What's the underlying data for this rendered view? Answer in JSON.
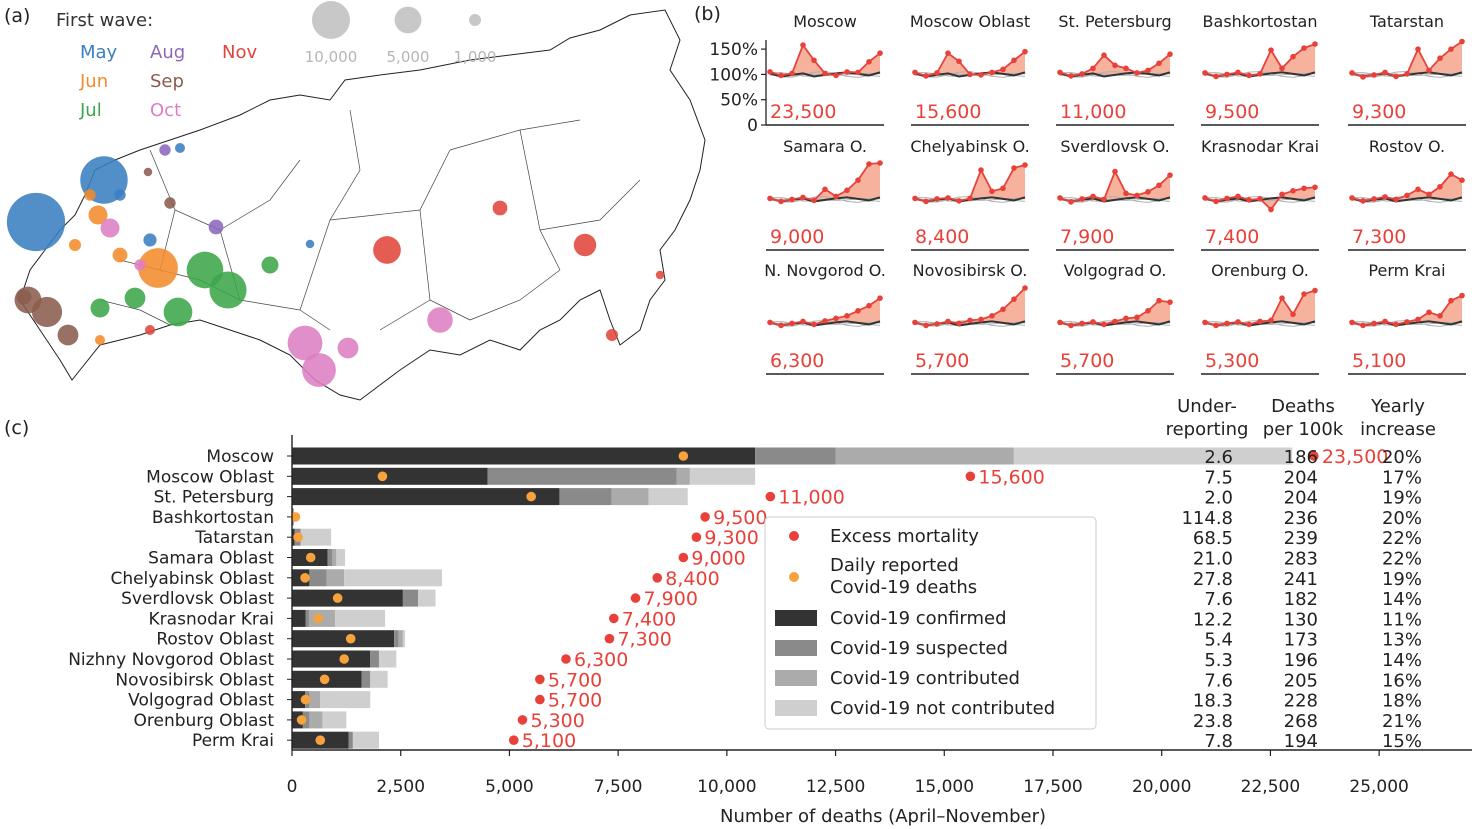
{
  "panel_labels": {
    "a": "(a)",
    "b": "(b)",
    "c": "(c)"
  },
  "colors": {
    "excess": "#e8413a",
    "reported": "#f7a23c",
    "confirmed": "#333333",
    "suspected": "#8a8a8a",
    "contributed": "#ababab",
    "not_contributed": "#cfcfcf",
    "fill": "#f6a58c",
    "May": "#3a7fc1",
    "Jun": "#f28b2b",
    "Jul": "#3ca64a",
    "Aug": "#8c68bd",
    "Sep": "#8a5c4e",
    "Oct": "#dd7fc3",
    "Nov": "#e0453a"
  },
  "map": {
    "legend_title": "First wave:",
    "months": [
      "May",
      "Jun",
      "Jul",
      "Aug",
      "Sep",
      "Oct",
      "Nov"
    ],
    "size_legend": [
      {
        "label": "10,000",
        "value": 10000
      },
      {
        "label": "5,000",
        "value": 5000
      },
      {
        "label": "1,000",
        "value": 1000
      }
    ],
    "circles": [
      {
        "month": "May",
        "value": 23500
      },
      {
        "month": "May",
        "value": 15600
      },
      {
        "month": "May",
        "value": 1200
      },
      {
        "month": "May",
        "value": 900
      },
      {
        "month": "May",
        "value": 700
      },
      {
        "month": "May",
        "value": 500
      },
      {
        "month": "Jun",
        "value": 11000
      },
      {
        "month": "Jun",
        "value": 2500
      },
      {
        "month": "Jun",
        "value": 1500
      },
      {
        "month": "Jun",
        "value": 1000
      },
      {
        "month": "Jun",
        "value": 900
      },
      {
        "month": "Jun",
        "value": 700
      },
      {
        "month": "Jul",
        "value": 9500
      },
      {
        "month": "Jul",
        "value": 9300
      },
      {
        "month": "Jul",
        "value": 5700
      },
      {
        "month": "Jul",
        "value": 3000
      },
      {
        "month": "Jul",
        "value": 2500
      },
      {
        "month": "Jul",
        "value": 2000
      },
      {
        "month": "Aug",
        "value": 1500
      },
      {
        "month": "Aug",
        "value": 900
      },
      {
        "month": "Sep",
        "value": 6300
      },
      {
        "month": "Sep",
        "value": 5000
      },
      {
        "month": "Sep",
        "value": 3000
      },
      {
        "month": "Sep",
        "value": 1500
      },
      {
        "month": "Sep",
        "value": 900
      },
      {
        "month": "Sep",
        "value": 500
      },
      {
        "month": "Oct",
        "value": 8400
      },
      {
        "month": "Oct",
        "value": 7900
      },
      {
        "month": "Oct",
        "value": 4500
      },
      {
        "month": "Oct",
        "value": 3000
      },
      {
        "month": "Oct",
        "value": 2500
      },
      {
        "month": "Oct",
        "value": 900
      },
      {
        "month": "Nov",
        "value": 5300
      },
      {
        "month": "Nov",
        "value": 3500
      },
      {
        "month": "Nov",
        "value": 1500
      },
      {
        "month": "Nov",
        "value": 1000
      },
      {
        "month": "Nov",
        "value": 700
      },
      {
        "month": "Nov",
        "value": 500
      }
    ]
  },
  "chart_data": [
    {
      "type": "line",
      "panel": "b",
      "ytick_labels": [
        "150%",
        "100%",
        "50%",
        "0"
      ],
      "yticks": [
        150,
        100,
        50,
        0
      ],
      "ylim": [
        0,
        170
      ],
      "months": 11,
      "regions": [
        {
          "name": "Moscow",
          "total": "23,500",
          "values": [
            105,
            98,
            102,
            158,
            128,
            102,
            98,
            105,
            104,
            125,
            142
          ]
        },
        {
          "name": "Moscow Oblast",
          "total": "15,600",
          "values": [
            104,
            97,
            103,
            142,
            126,
            100,
            99,
            104,
            110,
            128,
            145
          ]
        },
        {
          "name": "St. Petersburg",
          "total": "11,000",
          "values": [
            104,
            97,
            101,
            112,
            138,
            118,
            112,
            103,
            108,
            122,
            140
          ]
        },
        {
          "name": "Bashkortostan",
          "total": "9,500",
          "values": [
            103,
            96,
            100,
            104,
            98,
            101,
            148,
            112,
            135,
            152,
            160
          ]
        },
        {
          "name": "Tatarstan",
          "total": "9,300",
          "values": [
            103,
            95,
            99,
            104,
            96,
            101,
            150,
            108,
            132,
            150,
            165
          ]
        },
        {
          "name": "Samara O.",
          "total": "9,000",
          "values": [
            102,
            96,
            100,
            104,
            98,
            120,
            106,
            118,
            138,
            170,
            172
          ]
        },
        {
          "name": "Chelyabinsk O.",
          "total": "8,400",
          "values": [
            102,
            96,
            101,
            103,
            97,
            102,
            158,
            116,
            122,
            162,
            168
          ]
        },
        {
          "name": "Sverdlovsk O.",
          "total": "7,900",
          "values": [
            103,
            95,
            101,
            106,
            100,
            155,
            112,
            108,
            115,
            128,
            148
          ]
        },
        {
          "name": "Krasnodar Krai",
          "total": "7,400",
          "values": [
            103,
            96,
            102,
            106,
            99,
            101,
            80,
            110,
            117,
            122,
            124
          ]
        },
        {
          "name": "Rostov O.",
          "total": "7,300",
          "values": [
            103,
            97,
            101,
            105,
            100,
            108,
            120,
            110,
            125,
            150,
            138
          ]
        },
        {
          "name": "N. Novgorod O.",
          "total": "6,300",
          "values": [
            102,
            96,
            100,
            104,
            98,
            105,
            110,
            115,
            125,
            135,
            150
          ]
        },
        {
          "name": "Novosibirsk O.",
          "total": "5,700",
          "values": [
            102,
            96,
            99,
            104,
            100,
            106,
            108,
            115,
            128,
            148,
            170
          ]
        },
        {
          "name": "Volgograd O.",
          "total": "5,700",
          "values": [
            102,
            96,
            100,
            103,
            98,
            104,
            110,
            112,
            125,
            145,
            142
          ]
        },
        {
          "name": "Orenburg O.",
          "total": "5,300",
          "values": [
            102,
            96,
            100,
            103,
            98,
            104,
            106,
            150,
            118,
            158,
            165
          ]
        },
        {
          "name": "Perm Krai",
          "total": "5,100",
          "values": [
            102,
            96,
            100,
            104,
            98,
            103,
            108,
            122,
            115,
            145,
            155
          ]
        }
      ]
    },
    {
      "type": "bar",
      "panel": "c",
      "orientation": "horizontal",
      "stacked": true,
      "xlabel": "Number of deaths (April–November)",
      "xlim": [
        0,
        27000
      ],
      "xticks": [
        0,
        2500,
        5000,
        7500,
        10000,
        12500,
        15000,
        17500,
        20000,
        22500,
        25000
      ],
      "xtick_labels": [
        "0",
        "2,500",
        "5,000",
        "7,500",
        "10,000",
        "12,500",
        "15,000",
        "17,500",
        "20,000",
        "22,500",
        "25,000"
      ],
      "legend_placement": "center",
      "legend": [
        {
          "key": "excess",
          "label": "Excess mortality",
          "kind": "dot"
        },
        {
          "key": "reported",
          "label": "Daily reported Covid-19 deaths",
          "lines": [
            "Daily reported",
            "Covid-19 deaths"
          ],
          "kind": "dot"
        },
        {
          "key": "confirmed",
          "label": "Covid-19 confirmed",
          "kind": "bar"
        },
        {
          "key": "suspected",
          "label": "Covid-19 suspected",
          "kind": "bar"
        },
        {
          "key": "contributed",
          "label": "Covid-19 contributed",
          "kind": "bar"
        },
        {
          "key": "not_contributed",
          "label": "Covid-19 not contributed",
          "kind": "bar"
        }
      ],
      "table_headers": [
        {
          "lines": [
            "Under-",
            "reporting"
          ]
        },
        {
          "lines": [
            "Deaths",
            "per 100k"
          ]
        },
        {
          "lines": [
            "Yearly",
            "increase"
          ]
        }
      ],
      "categories": [
        "Moscow",
        "Moscow Oblast",
        "St. Petersburg",
        "Bashkortostan",
        "Tatarstan",
        "Samara Oblast",
        "Chelyabinsk Oblast",
        "Sverdlovsk Oblast",
        "Krasnodar Krai",
        "Rostov Oblast",
        "Nizhny Novgorod Oblast",
        "Novosibirsk Oblast",
        "Volgograd Oblast",
        "Orenburg Oblast",
        "Perm Krai"
      ],
      "series": [
        {
          "name": "Covid-19 confirmed",
          "key": "confirmed",
          "values": [
            10650,
            4500,
            6150,
            20,
            60,
            820,
            400,
            2550,
            310,
            2350,
            1800,
            1600,
            300,
            250,
            1300
          ]
        },
        {
          "name": "Covid-19 suspected",
          "key": "suspected",
          "values": [
            1850,
            4350,
            1200,
            20,
            140,
            100,
            400,
            350,
            80,
            100,
            200,
            200,
            100,
            150,
            100
          ]
        },
        {
          "name": "Covid-19 contributed",
          "key": "contributed",
          "values": [
            4100,
            300,
            850,
            0,
            0,
            100,
            400,
            0,
            600,
            100,
            0,
            0,
            250,
            300,
            0
          ]
        },
        {
          "name": "Covid-19 not contributed",
          "key": "not_contributed",
          "values": [
            6400,
            1500,
            900,
            0,
            700,
            200,
            2250,
            400,
            1150,
            50,
            400,
            400,
            1150,
            550,
            600
          ]
        }
      ],
      "reported": [
        9000,
        2080,
        5500,
        80,
        140,
        430,
        300,
        1050,
        600,
        1350,
        1200,
        750,
        310,
        220,
        650
      ],
      "excess": [
        23500,
        15600,
        11000,
        9500,
        9300,
        9000,
        8400,
        7900,
        7400,
        7300,
        6300,
        5700,
        5700,
        5300,
        5100
      ],
      "excess_labels": [
        "23,500",
        "15,600",
        "11,000",
        "9,500",
        "9,300",
        "9,000",
        "8,400",
        "7,900",
        "7,400",
        "7,300",
        "6,300",
        "5,700",
        "5,700",
        "5,300",
        "5,100"
      ],
      "table": [
        [
          "2.6",
          "186",
          "20%"
        ],
        [
          "7.5",
          "204",
          "17%"
        ],
        [
          "2.0",
          "204",
          "19%"
        ],
        [
          "114.8",
          "236",
          "20%"
        ],
        [
          "68.5",
          "239",
          "22%"
        ],
        [
          "21.0",
          "283",
          "22%"
        ],
        [
          "27.8",
          "241",
          "19%"
        ],
        [
          "7.6",
          "182",
          "14%"
        ],
        [
          "12.2",
          "130",
          "11%"
        ],
        [
          "5.4",
          "173",
          "13%"
        ],
        [
          "5.3",
          "196",
          "14%"
        ],
        [
          "7.6",
          "205",
          "16%"
        ],
        [
          "18.3",
          "228",
          "18%"
        ],
        [
          "23.8",
          "268",
          "21%"
        ],
        [
          "7.8",
          "194",
          "15%"
        ]
      ]
    }
  ]
}
